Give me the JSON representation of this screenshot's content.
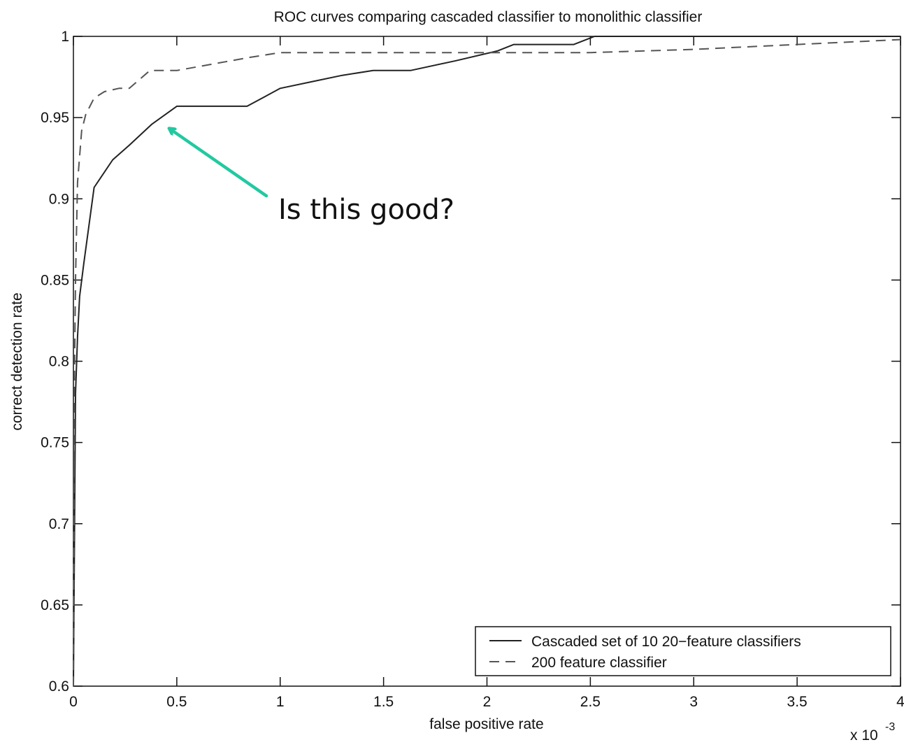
{
  "chart_data": {
    "type": "line",
    "title": "ROC curves comparing cascaded classifier to monolithic classifier",
    "xlabel": "false positive rate",
    "ylabel": "correct detection rate",
    "x_multiplier_label": "x 10",
    "x_multiplier_exponent": "-3",
    "xlim": [
      0,
      4
    ],
    "ylim": [
      0.6,
      1
    ],
    "x_ticks": [
      0,
      0.5,
      1,
      1.5,
      2,
      2.5,
      3,
      3.5,
      4
    ],
    "x_tick_labels": [
      "0",
      "0.5",
      "1",
      "1.5",
      "2",
      "2.5",
      "3",
      "3.5",
      "4"
    ],
    "y_ticks": [
      0.6,
      0.65,
      0.7,
      0.75,
      0.8,
      0.85,
      0.9,
      0.95,
      1
    ],
    "y_tick_labels": [
      "0.6",
      "0.65",
      "0.7",
      "0.75",
      "0.8",
      "0.85",
      "0.9",
      "0.95",
      "1"
    ],
    "grid": false,
    "legend_position": "bottom-right",
    "series": [
      {
        "name": "Cascaded set of 10 20−feature classifiers",
        "style": "solid",
        "color": "#222222",
        "x": [
          0.0,
          0.01,
          0.02,
          0.03,
          0.05,
          0.1,
          0.19,
          0.27,
          0.38,
          0.5,
          0.84,
          1.0,
          1.15,
          1.3,
          1.45,
          1.63,
          1.85,
          2.05,
          2.13,
          2.42,
          2.5,
          2.52,
          4.0
        ],
        "y": [
          0.6,
          0.78,
          0.815,
          0.84,
          0.86,
          0.907,
          0.924,
          0.933,
          0.946,
          0.957,
          0.957,
          0.968,
          0.972,
          0.976,
          0.979,
          0.979,
          0.985,
          0.991,
          0.995,
          0.995,
          0.999,
          1.0,
          1.0
        ]
      },
      {
        "name": "200 feature classifier",
        "style": "dashed",
        "color": "#555555",
        "x": [
          0.0,
          0.005,
          0.01,
          0.02,
          0.04,
          0.06,
          0.1,
          0.15,
          0.22,
          0.27,
          0.37,
          0.5,
          0.85,
          1.0,
          1.9,
          2.5,
          3.0,
          3.5,
          4.0
        ],
        "y": [
          0.6,
          0.79,
          0.85,
          0.91,
          0.942,
          0.952,
          0.962,
          0.966,
          0.968,
          0.968,
          0.979,
          0.979,
          0.987,
          0.99,
          0.99,
          0.99,
          0.992,
          0.995,
          0.998
        ]
      }
    ],
    "annotation": {
      "text": "Is this good?",
      "color": "#1a3eb5",
      "arrow_color": "#22c9a0",
      "points_to_x": 0.46,
      "points_to_y": 0.947
    }
  }
}
